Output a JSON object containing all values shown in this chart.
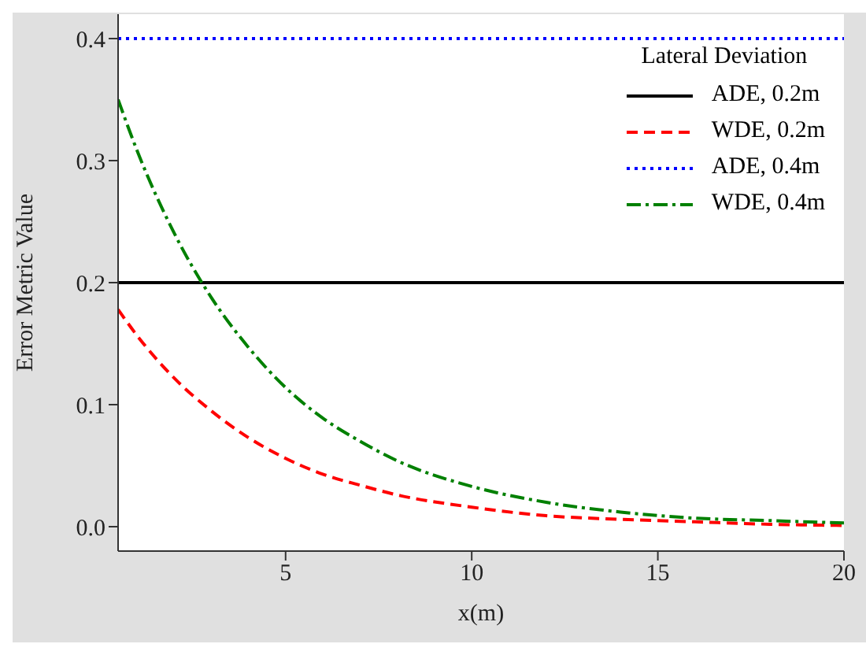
{
  "chart_data": {
    "type": "line",
    "xlabel": "x(m)",
    "ylabel": "Error Metric Value",
    "legend_title": "Lateral Deviation",
    "legend": "top right",
    "grid": false,
    "marker": "none",
    "x": [
      0.5,
      1,
      2,
      3,
      4,
      5,
      6,
      7,
      8,
      10,
      12,
      14,
      16,
      18,
      20
    ],
    "xlim": [
      0.5,
      20
    ],
    "xticks": [
      5,
      10,
      15,
      20
    ],
    "ylim": [
      -0.02,
      0.42
    ],
    "yticks": [
      {
        "value": 0,
        "label": "0.0"
      },
      {
        "value": 0.1,
        "label": "0.1"
      },
      {
        "value": 0.2,
        "label": "0.2"
      },
      {
        "value": 0.3,
        "label": "0.3"
      },
      {
        "value": 0.4,
        "label": "0.4"
      }
    ],
    "series": [
      {
        "name": "ADE, 0.2m",
        "color": "#000000",
        "line_style": "solid",
        "values": [
          0.2,
          0.2,
          0.2,
          0.2,
          0.2,
          0.2,
          0.2,
          0.2,
          0.2,
          0.2,
          0.2,
          0.2,
          0.2,
          0.2,
          0.2
        ]
      },
      {
        "name": "WDE, 0.2m",
        "color": "#ff0000",
        "line_style": "dashed",
        "values": [
          0.178,
          0.157,
          0.122,
          0.095,
          0.073,
          0.056,
          0.043,
          0.034,
          0.026,
          0.016,
          0.009,
          0.006,
          0.004,
          0.002,
          0.001
        ]
      },
      {
        "name": "ADE, 0.4m",
        "color": "#0000ff",
        "line_style": "dotted",
        "values": [
          0.4,
          0.4,
          0.4,
          0.4,
          0.4,
          0.4,
          0.4,
          0.4,
          0.4,
          0.4,
          0.4,
          0.4,
          0.4,
          0.4,
          0.4
        ]
      },
      {
        "name": "WDE, 0.4m",
        "color": "#008000",
        "line_style": "dashdot",
        "values": [
          0.35,
          0.309,
          0.241,
          0.188,
          0.147,
          0.114,
          0.089,
          0.07,
          0.054,
          0.033,
          0.02,
          0.012,
          0.007,
          0.005,
          0.003
        ]
      }
    ]
  }
}
